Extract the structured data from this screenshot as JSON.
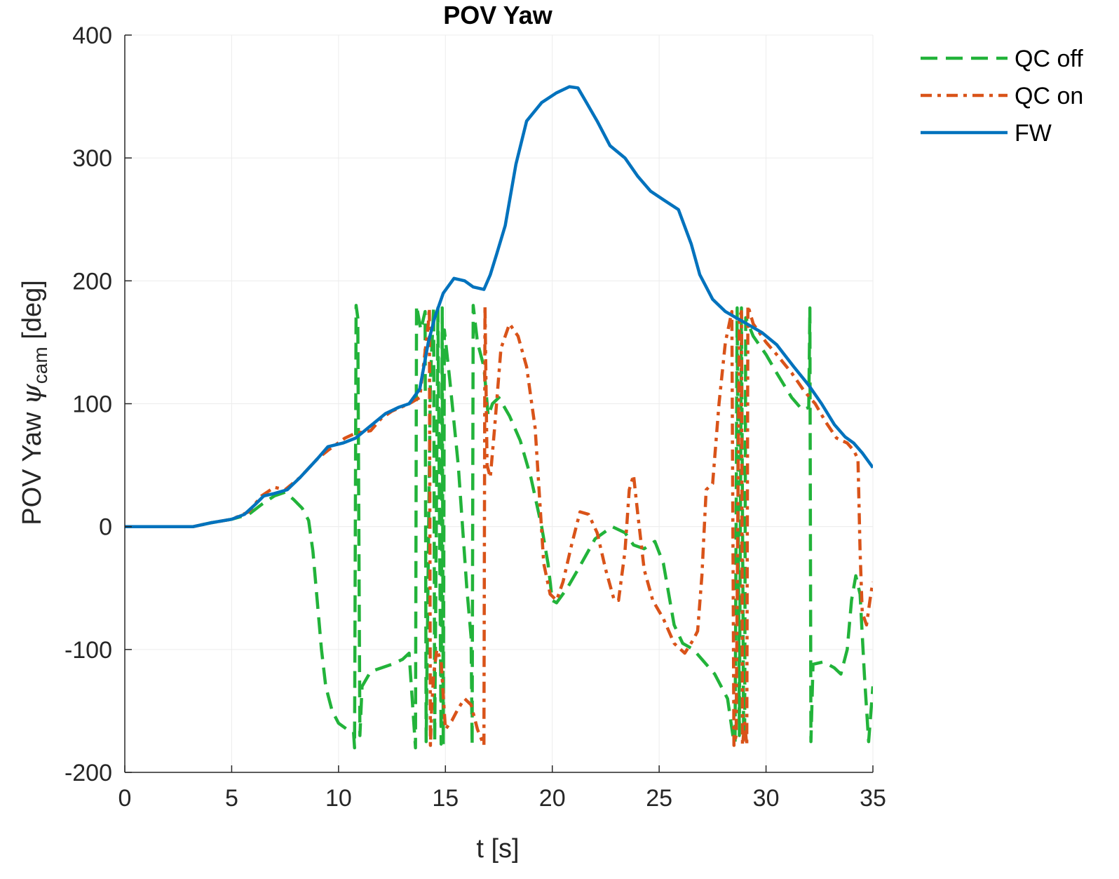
{
  "chart_data": {
    "type": "line",
    "title": "POV Yaw",
    "xlabel": "t [s]",
    "ylabel_prefix": "POV Yaw ",
    "ylabel_symbol": "ψ",
    "ylabel_subscript": "cam",
    "ylabel_suffix": " [deg]",
    "xlim": [
      0,
      35
    ],
    "ylim": [
      -200,
      400
    ],
    "xticks": [
      0,
      5,
      10,
      15,
      20,
      25,
      30,
      35
    ],
    "yticks": [
      -200,
      -100,
      0,
      100,
      200,
      300,
      400
    ],
    "grid": true,
    "legend_position": "outside top-right",
    "series": [
      {
        "name": "QC off",
        "color": "#22b33a",
        "style": "dashed",
        "points": [
          [
            0,
            0
          ],
          [
            3.2,
            0
          ],
          [
            4,
            3
          ],
          [
            5,
            6
          ],
          [
            5.8,
            10
          ],
          [
            6.4,
            18
          ],
          [
            7,
            25
          ],
          [
            7.5,
            28
          ],
          [
            7.9,
            22
          ],
          [
            8.3,
            15
          ],
          [
            8.6,
            5
          ],
          [
            8.8,
            -20
          ],
          [
            9,
            -60
          ],
          [
            9.2,
            -100
          ],
          [
            9.4,
            -130
          ],
          [
            9.7,
            -150
          ],
          [
            10,
            -160
          ],
          [
            10.4,
            -165
          ],
          [
            10.7,
            -167
          ],
          [
            10.75,
            -180
          ],
          [
            10.82,
            180
          ],
          [
            10.9,
            170
          ],
          [
            11,
            -170
          ],
          [
            11.1,
            -130
          ],
          [
            11.5,
            -118
          ],
          [
            12,
            -115
          ],
          [
            12.5,
            -112
          ],
          [
            13,
            -108
          ],
          [
            13.3,
            -103
          ],
          [
            13.6,
            -180
          ],
          [
            13.65,
            180
          ],
          [
            13.85,
            160
          ],
          [
            14.05,
            175
          ],
          [
            14.1,
            -175
          ],
          [
            14.3,
            120
          ],
          [
            14.45,
            178
          ],
          [
            14.5,
            -175
          ],
          [
            14.65,
            178
          ],
          [
            14.8,
            -177
          ],
          [
            14.85,
            178
          ],
          [
            14.9,
            -178
          ],
          [
            14.95,
            160
          ],
          [
            15.2,
            120
          ],
          [
            15.6,
            50
          ],
          [
            16,
            -50
          ],
          [
            16.2,
            -90
          ],
          [
            16.25,
            -178
          ],
          [
            16.3,
            180
          ],
          [
            16.5,
            150
          ],
          [
            16.8,
            130
          ],
          [
            17,
            90
          ],
          [
            17.2,
            100
          ],
          [
            17.5,
            105
          ],
          [
            18,
            90
          ],
          [
            18.5,
            70
          ],
          [
            19,
            40
          ],
          [
            19.5,
            0
          ],
          [
            19.8,
            -30
          ],
          [
            20,
            -60
          ],
          [
            20.2,
            -62
          ],
          [
            20.7,
            -50
          ],
          [
            21.2,
            -35
          ],
          [
            22,
            -10
          ],
          [
            22.8,
            0
          ],
          [
            23.4,
            -5
          ],
          [
            23.8,
            -15
          ],
          [
            24.3,
            -18
          ],
          [
            24.8,
            -12
          ],
          [
            25.2,
            -30
          ],
          [
            25.7,
            -80
          ],
          [
            26.1,
            -95
          ],
          [
            26.6,
            -100
          ],
          [
            27.1,
            -110
          ],
          [
            27.6,
            -120
          ],
          [
            28.2,
            -140
          ],
          [
            28.45,
            -170
          ],
          [
            28.55,
            -176
          ],
          [
            28.65,
            178
          ],
          [
            28.75,
            -170
          ],
          [
            28.85,
            178
          ],
          [
            28.95,
            -170
          ],
          [
            29,
            -165
          ],
          [
            29.05,
            170
          ],
          [
            29.4,
            155
          ],
          [
            30,
            140
          ],
          [
            30.5,
            125
          ],
          [
            31.2,
            105
          ],
          [
            31.7,
            95
          ],
          [
            32,
            97
          ],
          [
            32.05,
            178
          ],
          [
            32.1,
            -175
          ],
          [
            32.2,
            -112
          ],
          [
            32.7,
            -110
          ],
          [
            33.2,
            -115
          ],
          [
            33.5,
            -120
          ],
          [
            33.8,
            -100
          ],
          [
            34,
            -60
          ],
          [
            34.2,
            -40
          ],
          [
            34.4,
            -55
          ],
          [
            34.6,
            -120
          ],
          [
            34.8,
            -175
          ],
          [
            35,
            -130
          ]
        ]
      },
      {
        "name": "QC on",
        "color": "#d95319",
        "style": "dash-dot",
        "points": [
          [
            3.2,
            0
          ],
          [
            4,
            3
          ],
          [
            5,
            6
          ],
          [
            5.8,
            12
          ],
          [
            6.4,
            25
          ],
          [
            7,
            32
          ],
          [
            7.5,
            30
          ],
          [
            8.2,
            40
          ],
          [
            9,
            55
          ],
          [
            9.5,
            62
          ],
          [
            10.3,
            72
          ],
          [
            10.8,
            76
          ],
          [
            11.5,
            78
          ],
          [
            12,
            88
          ],
          [
            12.5,
            94
          ],
          [
            13.3,
            100
          ],
          [
            13.8,
            105
          ],
          [
            14.2,
            165
          ],
          [
            14.25,
            178
          ],
          [
            14.3,
            -178
          ],
          [
            14.35,
            -150
          ],
          [
            14.45,
            -120
          ],
          [
            14.6,
            -100
          ],
          [
            14.8,
            -110
          ],
          [
            15,
            -165
          ],
          [
            15.3,
            -158
          ],
          [
            15.6,
            -148
          ],
          [
            15.9,
            -140
          ],
          [
            16.2,
            -145
          ],
          [
            16.5,
            -165
          ],
          [
            16.8,
            -178
          ],
          [
            16.85,
            180
          ],
          [
            16.95,
            50
          ],
          [
            17.1,
            40
          ],
          [
            17.3,
            80
          ],
          [
            17.6,
            145
          ],
          [
            18,
            165
          ],
          [
            18.4,
            155
          ],
          [
            18.8,
            130
          ],
          [
            19.2,
            80
          ],
          [
            19.6,
            -30
          ],
          [
            19.9,
            -55
          ],
          [
            20.2,
            -60
          ],
          [
            20.5,
            -45
          ],
          [
            20.9,
            -15
          ],
          [
            21.3,
            12
          ],
          [
            21.7,
            10
          ],
          [
            22.1,
            -5
          ],
          [
            22.5,
            -35
          ],
          [
            22.9,
            -60
          ],
          [
            23.1,
            -60
          ],
          [
            23.4,
            -20
          ],
          [
            23.6,
            30
          ],
          [
            23.8,
            42
          ],
          [
            24,
            10
          ],
          [
            24.3,
            -35
          ],
          [
            24.7,
            -60
          ],
          [
            25.2,
            -75
          ],
          [
            25.7,
            -95
          ],
          [
            26.2,
            -103
          ],
          [
            26.6,
            -92
          ],
          [
            26.8,
            -85
          ],
          [
            27,
            -40
          ],
          [
            27.2,
            30
          ],
          [
            27.5,
            35
          ],
          [
            27.8,
            100
          ],
          [
            28.1,
            150
          ],
          [
            28.4,
            175
          ],
          [
            28.5,
            -178
          ],
          [
            28.6,
            -170
          ],
          [
            28.75,
            170
          ],
          [
            28.85,
            175
          ],
          [
            28.9,
            -178
          ],
          [
            29,
            -160
          ],
          [
            29.1,
            -178
          ],
          [
            29.15,
            180
          ],
          [
            29.4,
            165
          ],
          [
            30,
            150
          ],
          [
            30.5,
            140
          ],
          [
            31.2,
            125
          ],
          [
            31.8,
            110
          ],
          [
            32.3,
            100
          ],
          [
            32.8,
            85
          ],
          [
            33.3,
            72
          ],
          [
            33.8,
            68
          ],
          [
            34.1,
            62
          ],
          [
            34.3,
            55
          ],
          [
            34.4,
            -20
          ],
          [
            34.5,
            -70
          ],
          [
            34.7,
            -80
          ],
          [
            34.9,
            -55
          ],
          [
            35,
            -45
          ]
        ]
      },
      {
        "name": "FW",
        "color": "#0072bd",
        "style": "solid",
        "points": [
          [
            0,
            0
          ],
          [
            3.2,
            0
          ],
          [
            4,
            3
          ],
          [
            5,
            6
          ],
          [
            5.6,
            10
          ],
          [
            6.1,
            18
          ],
          [
            6.5,
            25
          ],
          [
            7,
            27
          ],
          [
            7.6,
            30
          ],
          [
            8.2,
            40
          ],
          [
            9,
            55
          ],
          [
            9.5,
            65
          ],
          [
            10.2,
            68
          ],
          [
            10.8,
            72
          ],
          [
            11.5,
            82
          ],
          [
            12.2,
            92
          ],
          [
            12.8,
            97
          ],
          [
            13.3,
            100
          ],
          [
            13.8,
            112
          ],
          [
            14.2,
            150
          ],
          [
            14.5,
            170
          ],
          [
            14.9,
            190
          ],
          [
            15.4,
            202
          ],
          [
            15.9,
            200
          ],
          [
            16.3,
            195
          ],
          [
            16.8,
            193
          ],
          [
            17.1,
            205
          ],
          [
            17.4,
            222
          ],
          [
            17.8,
            245
          ],
          [
            18.3,
            295
          ],
          [
            18.8,
            330
          ],
          [
            19.5,
            345
          ],
          [
            20.2,
            353
          ],
          [
            20.8,
            358
          ],
          [
            21.2,
            357
          ],
          [
            21.6,
            345
          ],
          [
            22.1,
            330
          ],
          [
            22.7,
            310
          ],
          [
            23.4,
            300
          ],
          [
            24,
            285
          ],
          [
            24.6,
            273
          ],
          [
            25.2,
            266
          ],
          [
            25.9,
            258
          ],
          [
            26.5,
            230
          ],
          [
            26.9,
            205
          ],
          [
            27.5,
            185
          ],
          [
            28.1,
            175
          ],
          [
            28.6,
            170
          ],
          [
            29.1,
            165
          ],
          [
            29.8,
            158
          ],
          [
            30.5,
            148
          ],
          [
            31.3,
            130
          ],
          [
            32,
            115
          ],
          [
            32.6,
            100
          ],
          [
            33.2,
            83
          ],
          [
            33.7,
            73
          ],
          [
            34.1,
            68
          ],
          [
            34.5,
            60
          ],
          [
            35,
            48
          ]
        ]
      }
    ]
  }
}
